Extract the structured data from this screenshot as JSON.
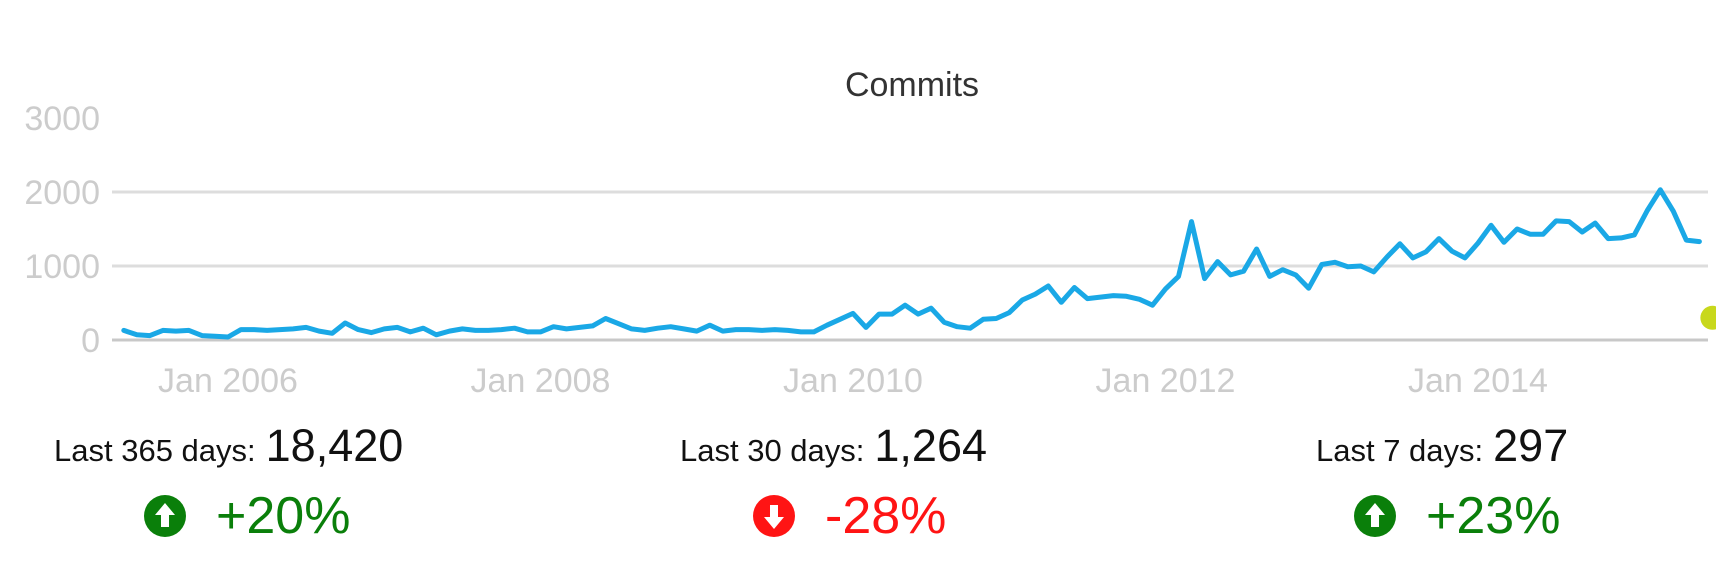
{
  "chart_data": {
    "type": "line",
    "title": "Commits",
    "xlabel": "",
    "ylabel": "",
    "ylim": [
      0,
      3000
    ],
    "y_ticks": [
      0,
      1000,
      2000,
      3000
    ],
    "x_ticks": [
      "Jan 2006",
      "Jan 2008",
      "Jan 2010",
      "Jan 2012",
      "Jan 2014"
    ],
    "grid": true,
    "line_color": "#1aa8e6",
    "marker_color": "#c8d81c",
    "series": [
      {
        "x": [
          "2005-05",
          "2005-06",
          "2005-07",
          "2005-08",
          "2005-09",
          "2005-10",
          "2005-11",
          "2005-12",
          "2006-01",
          "2006-02",
          "2006-03",
          "2006-04",
          "2006-05",
          "2006-06",
          "2006-07",
          "2006-08",
          "2006-09",
          "2006-10",
          "2006-11",
          "2006-12",
          "2007-01",
          "2007-02",
          "2007-03",
          "2007-04",
          "2007-05",
          "2007-06",
          "2007-07",
          "2007-08",
          "2007-09",
          "2007-10",
          "2007-11",
          "2007-12",
          "2008-01",
          "2008-02",
          "2008-03",
          "2008-04",
          "2008-05",
          "2008-06",
          "2008-07",
          "2008-08",
          "2008-09",
          "2008-10",
          "2008-11",
          "2008-12",
          "2009-01",
          "2009-02",
          "2009-03",
          "2009-04",
          "2009-05",
          "2009-06",
          "2009-07",
          "2009-08",
          "2009-09",
          "2009-10",
          "2009-11",
          "2009-12",
          "2010-01",
          "2010-02",
          "2010-03",
          "2010-04",
          "2010-05",
          "2010-06",
          "2010-07",
          "2010-08",
          "2010-09",
          "2010-10",
          "2010-11",
          "2010-12",
          "2011-01",
          "2011-02",
          "2011-03",
          "2011-04",
          "2011-05",
          "2011-06",
          "2011-07",
          "2011-08",
          "2011-09",
          "2011-10",
          "2011-11",
          "2011-12",
          "2012-01",
          "2012-02",
          "2012-03",
          "2012-04",
          "2012-05",
          "2012-06",
          "2012-07",
          "2012-08",
          "2012-09",
          "2012-10",
          "2012-11",
          "2012-12",
          "2013-01",
          "2013-02",
          "2013-03",
          "2013-04",
          "2013-05",
          "2013-06",
          "2013-07",
          "2013-08",
          "2013-09",
          "2013-10",
          "2013-11",
          "2013-12",
          "2014-01",
          "2014-02",
          "2014-03",
          "2014-04",
          "2014-05",
          "2014-06",
          "2014-07",
          "2014-08",
          "2014-09",
          "2014-10",
          "2014-11",
          "2014-12",
          "2015-01",
          "2015-02",
          "2015-03",
          "2015-04",
          "2015-05",
          "2015-06"
        ],
        "values": [
          130,
          70,
          60,
          130,
          120,
          130,
          60,
          50,
          40,
          140,
          140,
          130,
          140,
          150,
          170,
          120,
          90,
          230,
          140,
          100,
          150,
          170,
          110,
          160,
          70,
          120,
          150,
          130,
          130,
          140,
          160,
          110,
          110,
          180,
          150,
          170,
          190,
          290,
          220,
          150,
          130,
          160,
          180,
          150,
          120,
          200,
          120,
          140,
          140,
          130,
          140,
          130,
          110,
          110,
          200,
          280,
          360,
          170,
          350,
          350,
          470,
          350,
          430,
          240,
          180,
          160,
          280,
          290,
          370,
          540,
          620,
          730,
          510,
          710,
          560,
          580,
          600,
          590,
          550,
          470,
          690,
          860,
          1600,
          830,
          1060,
          880,
          930,
          1230,
          860,
          950,
          880,
          700,
          1020,
          1050,
          990,
          1000,
          920,
          1120,
          1300,
          1110,
          1190,
          1370,
          1200,
          1110,
          1310,
          1550,
          1320,
          1500,
          1430,
          1430,
          1610,
          1600,
          1460,
          1580,
          1370,
          1380,
          1420,
          1750,
          2030,
          1740,
          1350,
          1330
        ]
      }
    ],
    "marker": {
      "x": "2015-06",
      "y": 300
    }
  },
  "stats": [
    {
      "label": "Last 365 days:",
      "value": "18,420",
      "change": "+20%",
      "direction": "up",
      "color": "#0a7f0a",
      "icon": "arrow-up-circle-icon"
    },
    {
      "label": "Last 30 days:",
      "value": "1,264",
      "change": "-28%",
      "direction": "down",
      "color": "#ff1414",
      "icon": "arrow-down-circle-icon"
    },
    {
      "label": "Last 7 days:",
      "value": "297",
      "change": "+23%",
      "direction": "up",
      "color": "#0a7f0a",
      "icon": "arrow-up-circle-icon"
    }
  ]
}
